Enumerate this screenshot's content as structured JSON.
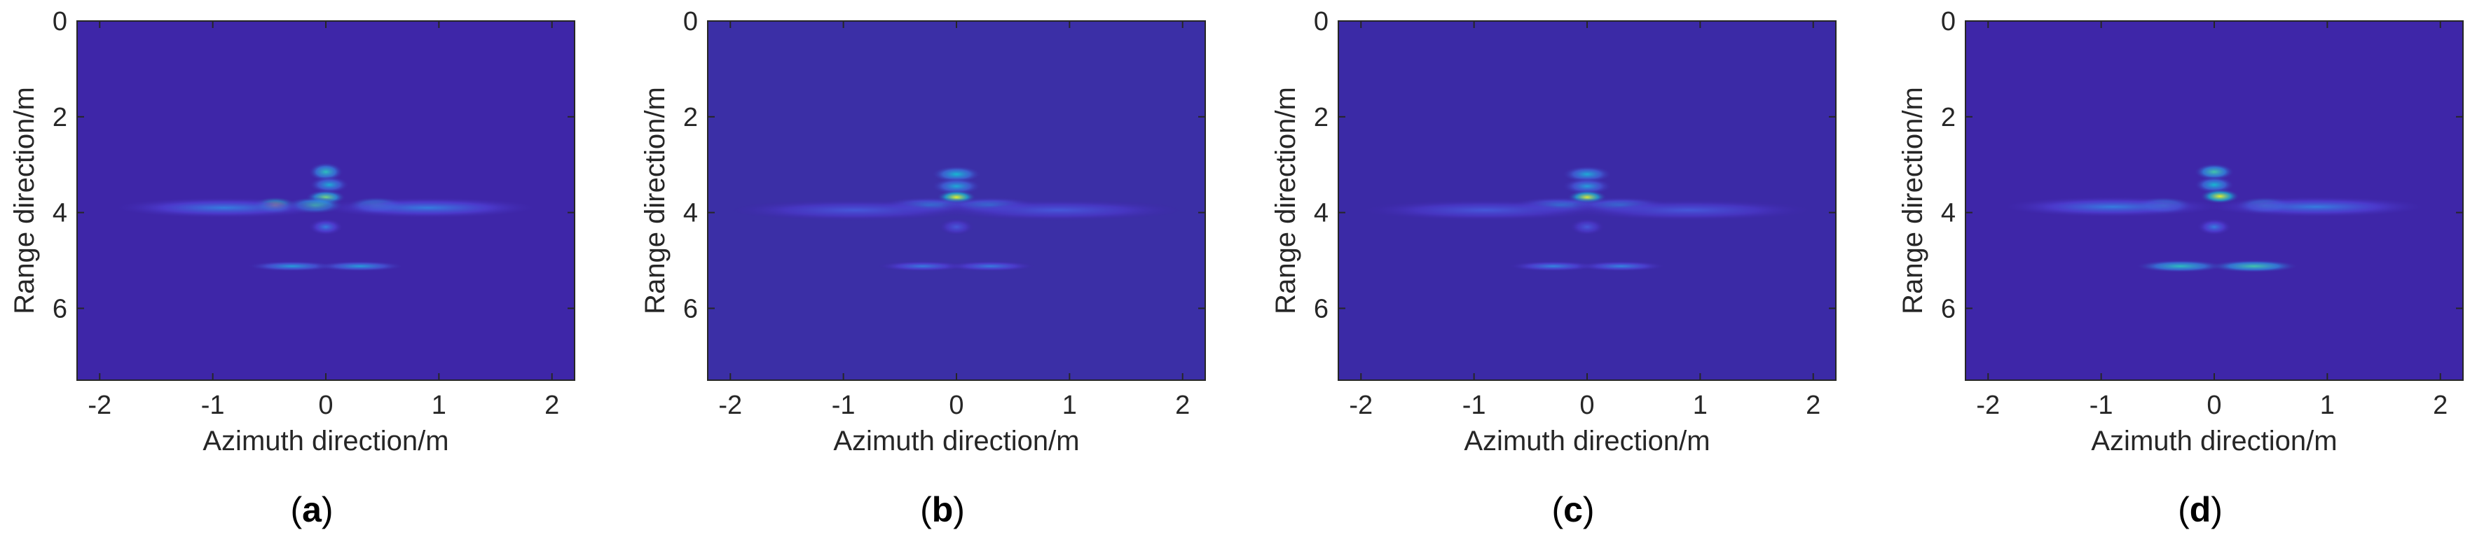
{
  "figure": {
    "panel_captions": [
      "a",
      "b",
      "c",
      "d"
    ]
  },
  "chart_data": [
    {
      "type": "heatmap",
      "caption": "a",
      "xlabel": "Azimuth direction/m",
      "ylabel": "Range direction/m",
      "xlim": [
        -2.2,
        2.2
      ],
      "ylim": [
        7.5,
        0
      ],
      "xticks": [
        -2,
        -1,
        0,
        1,
        2
      ],
      "yticks": [
        0,
        2,
        4,
        6
      ],
      "colormap": [
        "#3e26a8",
        "#4f3fd6",
        "#2f8de0",
        "#17b7cf",
        "#5fcf8f",
        "#d7e33a",
        "#f9fb0e"
      ],
      "background_color": "#3e26a8",
      "blobs": [
        {
          "x": 0.0,
          "y": 3.15,
          "sx": 0.07,
          "sy": 0.09,
          "v": 0.55
        },
        {
          "x": 0.03,
          "y": 3.42,
          "sx": 0.08,
          "sy": 0.08,
          "v": 0.45
        },
        {
          "x": 0.0,
          "y": 3.68,
          "sx": 0.08,
          "sy": 0.07,
          "v": 0.7
        },
        {
          "x": -0.45,
          "y": 3.85,
          "sx": 0.09,
          "sy": 0.08,
          "v": 0.95
        },
        {
          "x": 0.45,
          "y": 3.85,
          "sx": 0.12,
          "sy": 0.08,
          "v": 0.55
        },
        {
          "x": -0.1,
          "y": 3.85,
          "sx": 0.12,
          "sy": 0.08,
          "v": 0.6
        },
        {
          "x": -0.9,
          "y": 3.9,
          "sx": 0.45,
          "sy": 0.1,
          "v": 0.3
        },
        {
          "x": 0.9,
          "y": 3.9,
          "sx": 0.45,
          "sy": 0.1,
          "v": 0.3
        },
        {
          "x": 0.0,
          "y": 4.3,
          "sx": 0.07,
          "sy": 0.08,
          "v": 0.3
        },
        {
          "x": -0.3,
          "y": 5.12,
          "sx": 0.18,
          "sy": 0.05,
          "v": 0.4
        },
        {
          "x": 0.3,
          "y": 5.12,
          "sx": 0.18,
          "sy": 0.05,
          "v": 0.4
        }
      ]
    },
    {
      "type": "heatmap",
      "caption": "b",
      "xlabel": "Azimuth direction/m",
      "ylabel": "Range direction/m",
      "xlim": [
        -2.2,
        2.2
      ],
      "ylim": [
        7.5,
        0
      ],
      "xticks": [
        -2,
        -1,
        0,
        1,
        2
      ],
      "yticks": [
        0,
        2,
        4,
        6
      ],
      "colormap": [
        "#3e26a8",
        "#4f3fd6",
        "#2f8de0",
        "#17b7cf",
        "#5fcf8f",
        "#d7e33a",
        "#f9fb0e"
      ],
      "background_color": "#3b2fa6",
      "blobs": [
        {
          "x": 0.0,
          "y": 3.2,
          "sx": 0.1,
          "sy": 0.08,
          "v": 0.5
        },
        {
          "x": 0.0,
          "y": 3.45,
          "sx": 0.1,
          "sy": 0.08,
          "v": 0.45
        },
        {
          "x": 0.0,
          "y": 3.68,
          "sx": 0.08,
          "sy": 0.07,
          "v": 0.9
        },
        {
          "x": -0.25,
          "y": 3.85,
          "sx": 0.2,
          "sy": 0.08,
          "v": 0.35
        },
        {
          "x": 0.3,
          "y": 3.85,
          "sx": 0.2,
          "sy": 0.08,
          "v": 0.35
        },
        {
          "x": -0.9,
          "y": 3.95,
          "sx": 0.5,
          "sy": 0.1,
          "v": 0.22
        },
        {
          "x": 0.9,
          "y": 3.95,
          "sx": 0.5,
          "sy": 0.1,
          "v": 0.22
        },
        {
          "x": 0.0,
          "y": 4.3,
          "sx": 0.07,
          "sy": 0.08,
          "v": 0.22
        },
        {
          "x": -0.3,
          "y": 5.12,
          "sx": 0.18,
          "sy": 0.05,
          "v": 0.3
        },
        {
          "x": 0.3,
          "y": 5.12,
          "sx": 0.18,
          "sy": 0.05,
          "v": 0.3
        }
      ]
    },
    {
      "type": "heatmap",
      "caption": "c",
      "xlabel": "Azimuth direction/m",
      "ylabel": "Range direction/m",
      "xlim": [
        -2.2,
        2.2
      ],
      "ylim": [
        7.5,
        0
      ],
      "xticks": [
        -2,
        -1,
        0,
        1,
        2
      ],
      "yticks": [
        0,
        2,
        4,
        6
      ],
      "colormap": [
        "#3e26a8",
        "#4f3fd6",
        "#2f8de0",
        "#17b7cf",
        "#5fcf8f",
        "#d7e33a",
        "#f9fb0e"
      ],
      "background_color": "#3b2aa6",
      "blobs": [
        {
          "x": 0.0,
          "y": 3.2,
          "sx": 0.1,
          "sy": 0.08,
          "v": 0.45
        },
        {
          "x": 0.0,
          "y": 3.45,
          "sx": 0.1,
          "sy": 0.08,
          "v": 0.4
        },
        {
          "x": 0.0,
          "y": 3.68,
          "sx": 0.08,
          "sy": 0.07,
          "v": 0.85
        },
        {
          "x": -0.25,
          "y": 3.85,
          "sx": 0.2,
          "sy": 0.08,
          "v": 0.35
        },
        {
          "x": 0.3,
          "y": 3.85,
          "sx": 0.2,
          "sy": 0.08,
          "v": 0.35
        },
        {
          "x": -0.9,
          "y": 3.95,
          "sx": 0.5,
          "sy": 0.1,
          "v": 0.22
        },
        {
          "x": 0.9,
          "y": 3.95,
          "sx": 0.5,
          "sy": 0.1,
          "v": 0.22
        },
        {
          "x": 0.0,
          "y": 4.3,
          "sx": 0.07,
          "sy": 0.08,
          "v": 0.22
        },
        {
          "x": -0.3,
          "y": 5.12,
          "sx": 0.18,
          "sy": 0.05,
          "v": 0.32
        },
        {
          "x": 0.3,
          "y": 5.12,
          "sx": 0.18,
          "sy": 0.05,
          "v": 0.32
        }
      ]
    },
    {
      "type": "heatmap",
      "caption": "d",
      "xlabel": "Azimuth direction/m",
      "ylabel": "Range direction/m",
      "xlim": [
        -2.2,
        2.2
      ],
      "ylim": [
        7.5,
        0
      ],
      "xticks": [
        -2,
        -1,
        0,
        1,
        2
      ],
      "yticks": [
        0,
        2,
        4,
        6
      ],
      "colormap": [
        "#3e26a8",
        "#4f3fd6",
        "#2f8de0",
        "#17b7cf",
        "#5fcf8f",
        "#d7e33a",
        "#f9fb0e"
      ],
      "background_color": "#3e26a8",
      "blobs": [
        {
          "x": 0.0,
          "y": 3.15,
          "sx": 0.08,
          "sy": 0.08,
          "v": 0.6
        },
        {
          "x": 0.0,
          "y": 3.42,
          "sx": 0.08,
          "sy": 0.08,
          "v": 0.5
        },
        {
          "x": 0.05,
          "y": 3.66,
          "sx": 0.08,
          "sy": 0.07,
          "v": 0.9
        },
        {
          "x": -0.45,
          "y": 3.85,
          "sx": 0.12,
          "sy": 0.08,
          "v": 0.55
        },
        {
          "x": 0.45,
          "y": 3.85,
          "sx": 0.12,
          "sy": 0.08,
          "v": 0.55
        },
        {
          "x": -0.9,
          "y": 3.88,
          "sx": 0.45,
          "sy": 0.1,
          "v": 0.3
        },
        {
          "x": 0.9,
          "y": 3.88,
          "sx": 0.45,
          "sy": 0.1,
          "v": 0.3
        },
        {
          "x": 0.0,
          "y": 4.3,
          "sx": 0.07,
          "sy": 0.08,
          "v": 0.3
        },
        {
          "x": -0.3,
          "y": 5.12,
          "sx": 0.18,
          "sy": 0.06,
          "v": 0.55
        },
        {
          "x": 0.35,
          "y": 5.12,
          "sx": 0.18,
          "sy": 0.06,
          "v": 0.6
        }
      ]
    }
  ]
}
